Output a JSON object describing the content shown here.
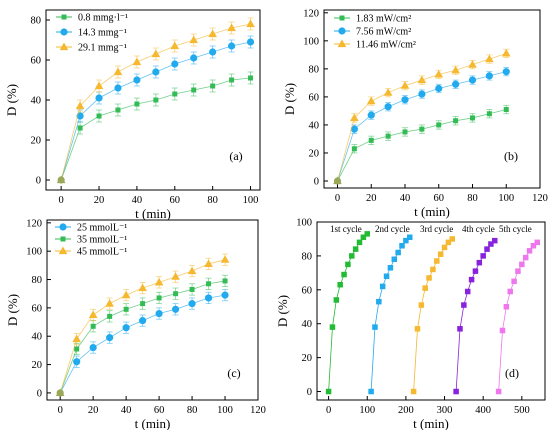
{
  "chart_data": [
    {
      "type": "line",
      "panel_label": "(a)",
      "xlabel": "t (min)",
      "ylabel": "D (%)",
      "xlim": [
        -8,
        105
      ],
      "ylim": [
        -5,
        85
      ],
      "xticks": [
        0,
        20,
        40,
        60,
        80,
        100
      ],
      "yticks": [
        0,
        20,
        40,
        60,
        80
      ],
      "x": [
        0,
        10,
        20,
        30,
        40,
        50,
        60,
        70,
        80,
        90,
        100
      ],
      "error_bars": true,
      "legend_position": "top-left",
      "series": [
        {
          "name": "0.8  mmg⋅l⁻¹",
          "color": "#33bb55",
          "marker": "square",
          "values": [
            0,
            26,
            32,
            35,
            38,
            40,
            43,
            45,
            47,
            50,
            51
          ],
          "errors": [
            0,
            3,
            3,
            3,
            3,
            3,
            3,
            3,
            3,
            3,
            3
          ]
        },
        {
          "name": "14.3 mmg⁻¹",
          "color": "#22aaee",
          "marker": "circle",
          "values": [
            0,
            32,
            41,
            46,
            50,
            54,
            58,
            61,
            64,
            67,
            69
          ],
          "errors": [
            0,
            3,
            3,
            3,
            3,
            3,
            3,
            3,
            3,
            3,
            3
          ]
        },
        {
          "name": "29.1 mmg⁻¹",
          "color": "#f5b82e",
          "marker": "triangle",
          "values": [
            0,
            37,
            47,
            54,
            59,
            63,
            67,
            70,
            73,
            76,
            78
          ],
          "errors": [
            0,
            3,
            3,
            3,
            3,
            3,
            3,
            3,
            3,
            3,
            3
          ]
        }
      ]
    },
    {
      "type": "line",
      "panel_label": "(b)",
      "xlabel": "t (min)",
      "ylabel": "D (%)",
      "xlim": [
        -8,
        120
      ],
      "ylim": [
        -5,
        122
      ],
      "xticks": [
        0,
        20,
        40,
        60,
        80,
        100,
        120
      ],
      "yticks": [
        0,
        20,
        40,
        60,
        80,
        100,
        120
      ],
      "x": [
        0,
        10,
        20,
        30,
        40,
        50,
        60,
        70,
        80,
        90,
        100
      ],
      "error_bars": true,
      "legend_position": "top-left",
      "series": [
        {
          "name": "1.83 mW/cm²",
          "color": "#33bb55",
          "marker": "square",
          "values": [
            0,
            23,
            29,
            32,
            35,
            37,
            40,
            43,
            45,
            48,
            51
          ],
          "errors": [
            0,
            3,
            3,
            3,
            3,
            3,
            3,
            3,
            3,
            3,
            3
          ]
        },
        {
          "name": "7.56 mW/cm²",
          "color": "#22aaee",
          "marker": "circle",
          "values": [
            0,
            37,
            47,
            53,
            58,
            62,
            66,
            69,
            72,
            75,
            78
          ],
          "errors": [
            0,
            3,
            3,
            3,
            3,
            3,
            3,
            3,
            3,
            3,
            3
          ]
        },
        {
          "name": "11.46 mW/cm²",
          "color": "#f5b82e",
          "marker": "triangle",
          "values": [
            0,
            45,
            57,
            63,
            68,
            72,
            76,
            79,
            83,
            87,
            91
          ],
          "errors": [
            0,
            3,
            3,
            3,
            3,
            3,
            3,
            3,
            3,
            3,
            3
          ]
        }
      ]
    },
    {
      "type": "line",
      "panel_label": "(c)",
      "xlabel": "t (min)",
      "ylabel": "D (%)",
      "xlim": [
        -8,
        120
      ],
      "ylim": [
        -5,
        122
      ],
      "xticks": [
        0,
        20,
        40,
        60,
        80,
        100,
        120
      ],
      "yticks": [
        0,
        20,
        40,
        60,
        80,
        100,
        120
      ],
      "x": [
        0,
        10,
        20,
        30,
        40,
        50,
        60,
        70,
        80,
        90,
        100
      ],
      "error_bars": true,
      "legend_position": "top-left",
      "series": [
        {
          "name": "25 mmolL⁻¹",
          "color": "#22aaee",
          "marker": "circle",
          "values": [
            0,
            22,
            32,
            39,
            46,
            51,
            56,
            59,
            63,
            67,
            69
          ],
          "errors": [
            0,
            4,
            4,
            4,
            4,
            4,
            4,
            4,
            4,
            4,
            4
          ]
        },
        {
          "name": "35 mmolL⁻¹",
          "color": "#33bb55",
          "marker": "square",
          "values": [
            0,
            31,
            47,
            54,
            59,
            63,
            67,
            70,
            73,
            77,
            79
          ],
          "errors": [
            0,
            4,
            4,
            4,
            4,
            4,
            4,
            4,
            4,
            4,
            4
          ]
        },
        {
          "name": "45 mmolL⁻¹",
          "color": "#f5b82e",
          "marker": "triangle",
          "values": [
            0,
            38,
            55,
            63,
            69,
            74,
            78,
            82,
            86,
            91,
            94
          ],
          "errors": [
            0,
            4,
            4,
            4,
            4,
            4,
            4,
            4,
            4,
            4,
            4
          ]
        }
      ]
    },
    {
      "type": "scatter",
      "panel_label": "(d)",
      "xlabel": "t (min)",
      "ylabel": "D (%)",
      "xlim": [
        -30,
        560
      ],
      "ylim": [
        -5,
        100
      ],
      "xticks": [
        0,
        100,
        200,
        300,
        400,
        500
      ],
      "yticks": [
        0,
        20,
        40,
        60,
        80,
        100
      ],
      "series": [
        {
          "name": "1st cycle",
          "color": "#22bb33",
          "marker": "square",
          "x": [
            0,
            10,
            20,
            30,
            40,
            50,
            60,
            70,
            80,
            90,
            100
          ],
          "values": [
            0,
            38,
            54,
            63,
            69,
            75,
            80,
            84,
            88,
            91,
            93
          ]
        },
        {
          "name": "2nd cycle",
          "color": "#22aaee",
          "marker": "square",
          "x": [
            110,
            120,
            130,
            140,
            150,
            160,
            170,
            180,
            190,
            200,
            210
          ],
          "values": [
            0,
            38,
            53,
            62,
            68,
            73,
            78,
            82,
            86,
            89,
            91
          ]
        },
        {
          "name": "3rd cycle",
          "color": "#f5b82e",
          "marker": "square",
          "x": [
            220,
            230,
            240,
            250,
            260,
            270,
            280,
            290,
            300,
            310,
            320
          ],
          "values": [
            0,
            37,
            51,
            61,
            67,
            72,
            77,
            81,
            85,
            88,
            90
          ]
        },
        {
          "name": "4th cycle",
          "color": "#8822dd",
          "marker": "square",
          "x": [
            330,
            340,
            350,
            360,
            370,
            380,
            390,
            400,
            410,
            420,
            430
          ],
          "values": [
            0,
            37,
            51,
            59,
            66,
            71,
            76,
            80,
            84,
            87,
            89
          ]
        },
        {
          "name": "5th cycle",
          "color": "#ee77ee",
          "marker": "square",
          "x": [
            440,
            450,
            460,
            470,
            480,
            490,
            500,
            510,
            520,
            530,
            540
          ],
          "values": [
            0,
            36,
            50,
            59,
            65,
            71,
            75,
            79,
            83,
            86,
            88
          ]
        }
      ]
    }
  ]
}
